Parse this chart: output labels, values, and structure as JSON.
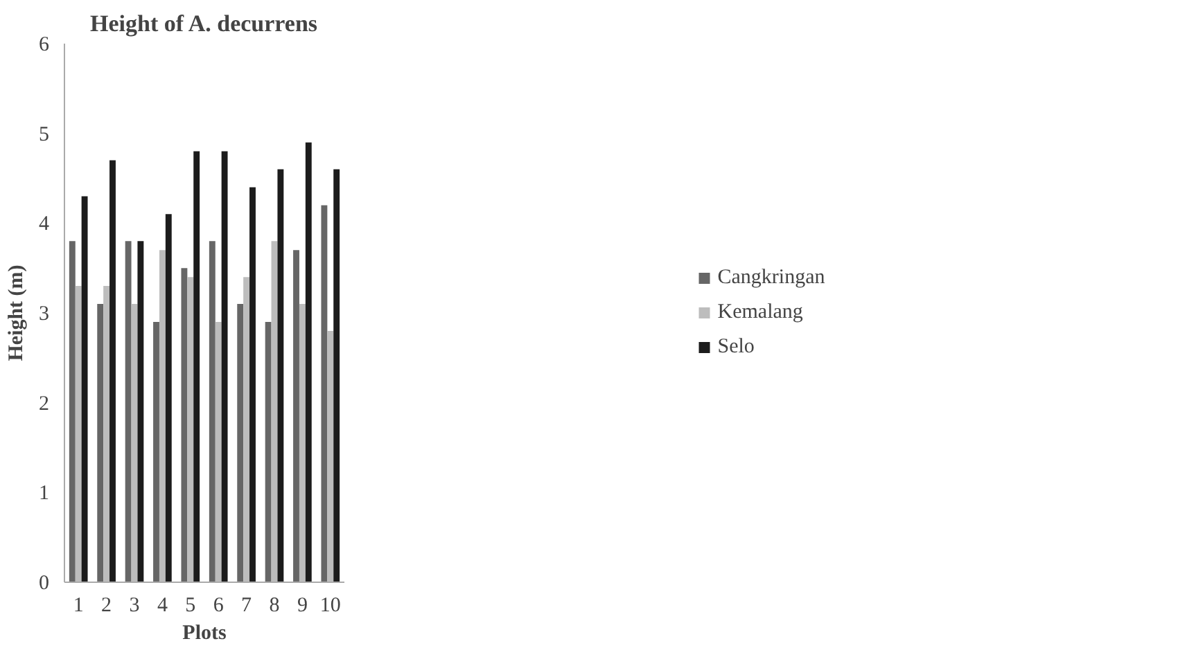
{
  "chart_data": {
    "type": "bar",
    "title": "Height of A. decurrens",
    "xlabel": "Plots",
    "ylabel": "Height (m)",
    "categories": [
      "1",
      "2",
      "3",
      "4",
      "5",
      "6",
      "7",
      "8",
      "9",
      "10"
    ],
    "series": [
      {
        "name": "Cangkringan",
        "color": "#666666",
        "values": [
          3.8,
          3.1,
          3.8,
          2.9,
          3.5,
          3.8,
          3.1,
          2.9,
          3.7,
          4.2
        ]
      },
      {
        "name": "Kemalang",
        "color": "#bdbdbd",
        "values": [
          3.3,
          3.3,
          3.1,
          3.7,
          3.4,
          2.9,
          3.4,
          3.8,
          3.1,
          2.8
        ]
      },
      {
        "name": "Selo",
        "color": "#1c1c1c",
        "values": [
          4.3,
          4.7,
          3.8,
          4.1,
          4.8,
          4.8,
          4.4,
          4.6,
          4.9,
          4.6
        ]
      }
    ],
    "ylim": [
      0,
      6
    ],
    "yticks": [
      0,
      1,
      2,
      3,
      4,
      5,
      6
    ],
    "grid": false,
    "legend": "right"
  }
}
